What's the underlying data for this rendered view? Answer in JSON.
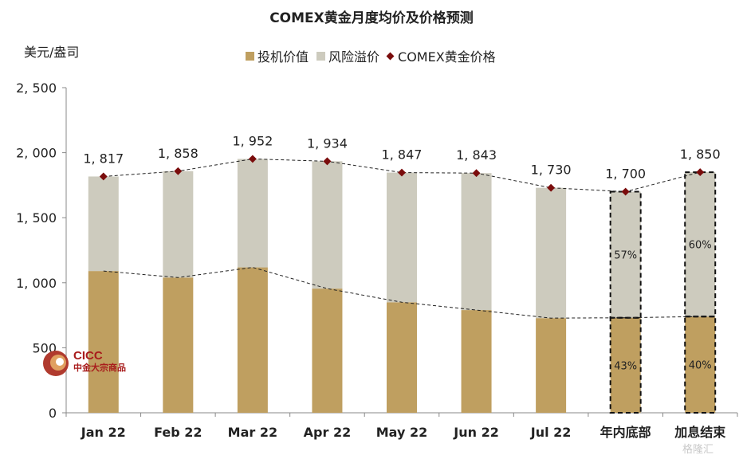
{
  "chart_data": {
    "type": "bar",
    "title": "COMEX黄金月度均价及价格预测",
    "ylabel": "美元/盎司",
    "ylim": [
      0,
      2500
    ],
    "yticks": [
      0,
      500,
      1000,
      1500,
      2000,
      2500
    ],
    "ytick_labels": [
      "0",
      "500",
      "1, 000",
      "1, 500",
      "2, 000",
      "2, 500"
    ],
    "categories": [
      "Jan 22",
      "Feb 22",
      "Mar 22",
      "Apr 22",
      "May 22",
      "Jun 22",
      "Jul 22",
      "年内底部",
      "加息结束"
    ],
    "stacked": true,
    "forecast_categories": [
      "年内底部",
      "加息结束"
    ],
    "series": [
      {
        "name": "投机价值",
        "kind": "bar",
        "color": "#bf9f60",
        "values": [
          1090,
          1040,
          1118,
          955,
          850,
          790,
          728,
          731,
          740
        ],
        "segment_labels": [
          "",
          "",
          "",
          "",
          "",
          "",
          "",
          "43%",
          "40%"
        ]
      },
      {
        "name": "风险溢价",
        "kind": "bar",
        "color": "#cdcbbe",
        "values": [
          727,
          818,
          834,
          979,
          997,
          1053,
          1002,
          969,
          1110
        ],
        "segment_labels": [
          "",
          "",
          "",
          "",
          "",
          "",
          "",
          "57%",
          "60%"
        ]
      },
      {
        "name": "COMEX黄金价格",
        "kind": "marker",
        "color": "#7a0c0c",
        "values": [
          1817,
          1858,
          1952,
          1934,
          1847,
          1843,
          1730,
          1700,
          1850
        ],
        "value_labels": [
          "1, 817",
          "1, 858",
          "1, 952",
          "1, 934",
          "1, 847",
          "1, 843",
          "1, 730",
          "1, 700",
          "1, 850"
        ]
      }
    ],
    "legend": "top-center",
    "grid": false
  },
  "legend": {
    "items": [
      "投机价值",
      "风险溢价",
      "COMEX黄金价格"
    ]
  },
  "logo": {
    "en": "CICC",
    "cn": "中金大宗商品"
  },
  "watermark": "格隆汇"
}
